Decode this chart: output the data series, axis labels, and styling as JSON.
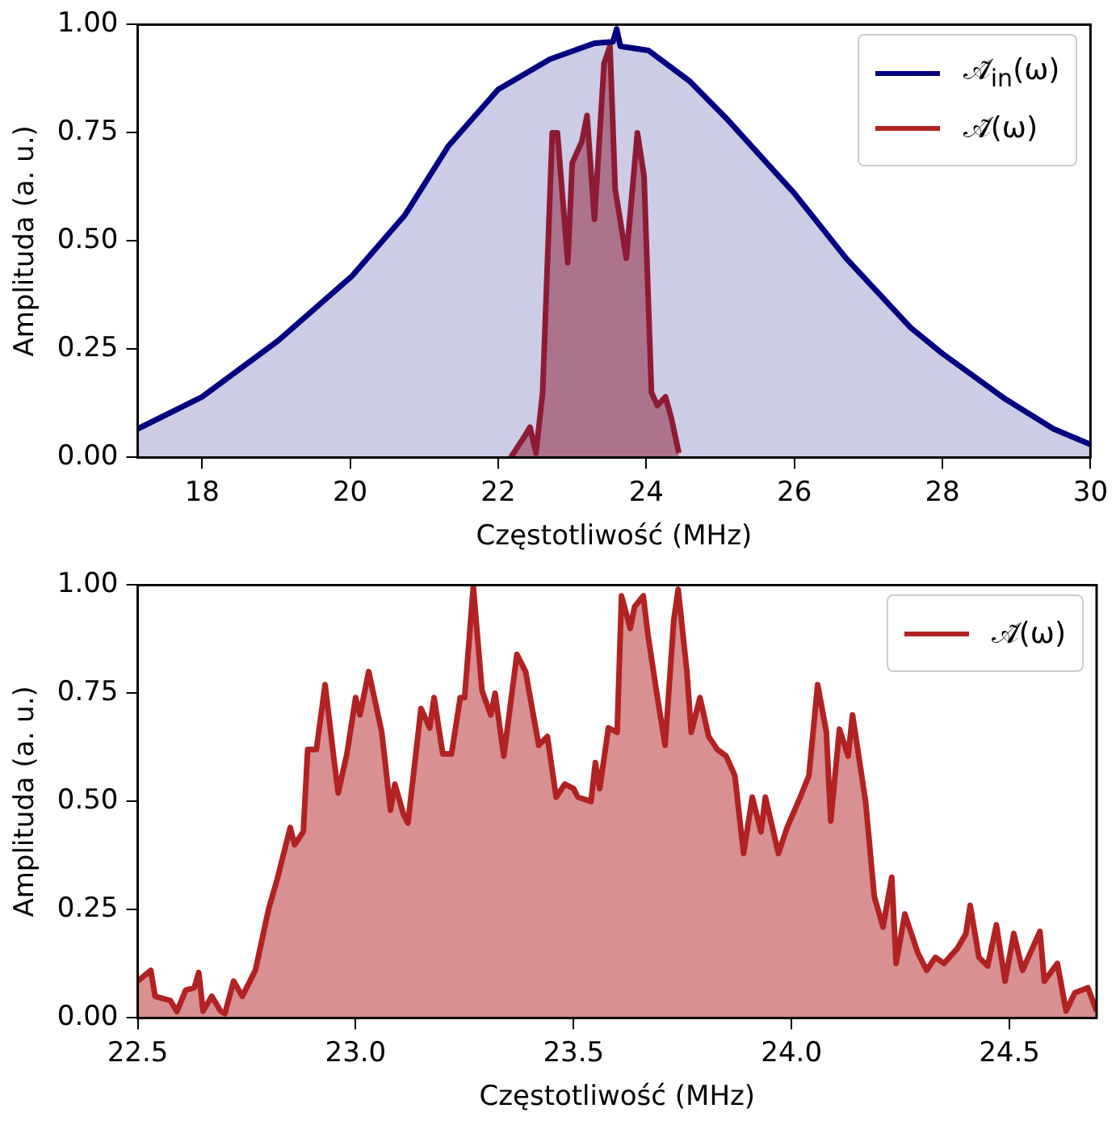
{
  "chart_data": [
    {
      "type": "area",
      "xlabel": "Częstotliwość (MHz)",
      "ylabel": "Amplituda (a. u.)",
      "xlim": [
        17.13,
        30
      ],
      "xticks": [
        18,
        20,
        22,
        24,
        26,
        28,
        30
      ],
      "ylim": [
        0,
        1.0
      ],
      "yticks": [
        {
          "value": 0,
          "label": "0.00"
        },
        {
          "value": 0.25,
          "label": "0.25"
        },
        {
          "value": 0.5,
          "label": "0.50"
        },
        {
          "value": 0.75,
          "label": "0.75"
        },
        {
          "value": 1,
          "label": "1.00"
        }
      ],
      "grid": false,
      "legend": "top right",
      "marker": "none",
      "line_style": "solid",
      "series": [
        {
          "name": "𝒜̃$_{in}$(ω)",
          "color": "#000080",
          "x": [
            17.13,
            18,
            19.03,
            20.03,
            20.74,
            21.33,
            22,
            22.7,
            23.3,
            23.55,
            23.6,
            23.65,
            24.03,
            24.58,
            25.1,
            26,
            26.7,
            27.57,
            28,
            28.85,
            29.5,
            30
          ],
          "values": [
            0.066,
            0.14,
            0.27,
            0.42,
            0.56,
            0.72,
            0.85,
            0.92,
            0.957,
            0.96,
            0.99,
            0.95,
            0.94,
            0.87,
            0.78,
            0.61,
            0.46,
            0.3,
            0.24,
            0.135,
            0.066,
            0.03
          ]
        },
        {
          "name": "𝒜̃(ω)",
          "color": "#b22222",
          "x": [
            22.17,
            22.36,
            22.43,
            22.51,
            22.6,
            22.73,
            22.8,
            22.94,
            23.0,
            23.13,
            23.2,
            23.3,
            23.43,
            23.51,
            23.58,
            23.73,
            23.88,
            23.97,
            24.07,
            24.15,
            24.26,
            24.34,
            24.44
          ],
          "values": [
            0,
            0.05,
            0.07,
            0.01,
            0.15,
            0.75,
            0.75,
            0.45,
            0.68,
            0.73,
            0.79,
            0.55,
            0.91,
            0.95,
            0.62,
            0.46,
            0.75,
            0.65,
            0.15,
            0.12,
            0.14,
            0.09,
            0.01
          ]
        }
      ]
    },
    {
      "type": "area",
      "xlabel": "Częstotliwość (MHz)",
      "ylabel": "Amplituda (a. u.)",
      "xlim": [
        22.5,
        24.7
      ],
      "xticks": [
        {
          "value": 22.5,
          "label": "22.5"
        },
        {
          "value": 23,
          "label": "23.0"
        },
        {
          "value": 23.5,
          "label": "23.5"
        },
        {
          "value": 24,
          "label": "24.0"
        },
        {
          "value": 24.5,
          "label": "24.5"
        }
      ],
      "ylim": [
        0,
        1.0
      ],
      "yticks": [
        {
          "value": 0,
          "label": "0.00"
        },
        {
          "value": 0.25,
          "label": "0.25"
        },
        {
          "value": 0.5,
          "label": "0.50"
        },
        {
          "value": 0.75,
          "label": "0.75"
        },
        {
          "value": 1,
          "label": "1.00"
        }
      ],
      "grid": false,
      "legend": "top right",
      "marker": "none",
      "line_style": "solid",
      "series": [
        {
          "name": "𝒜̃(ω)",
          "color": "#b22222",
          "x": [
            22.5,
            22.53,
            22.54,
            22.575,
            22.59,
            22.61,
            22.63,
            22.64,
            22.65,
            22.67,
            22.69,
            22.7,
            22.72,
            22.74,
            22.77,
            22.8,
            22.82,
            22.85,
            22.86,
            22.88,
            22.89,
            22.91,
            22.93,
            22.95,
            22.96,
            22.98,
            23.0,
            23.01,
            23.03,
            23.06,
            23.08,
            23.09,
            23.11,
            23.12,
            23.15,
            23.17,
            23.18,
            23.2,
            23.22,
            23.24,
            23.25,
            23.27,
            23.29,
            23.31,
            23.32,
            23.34,
            23.37,
            23.39,
            23.42,
            23.44,
            23.46,
            23.48,
            23.5,
            23.51,
            23.54,
            23.55,
            23.56,
            23.58,
            23.6,
            23.61,
            23.63,
            23.64,
            23.66,
            23.67,
            23.69,
            23.71,
            23.73,
            23.74,
            23.76,
            23.77,
            23.79,
            23.81,
            23.83,
            23.85,
            23.87,
            23.89,
            23.91,
            23.93,
            23.94,
            23.97,
            23.99,
            24.02,
            24.04,
            24.06,
            24.08,
            24.09,
            24.11,
            24.13,
            24.14,
            24.17,
            24.19,
            24.21,
            24.23,
            24.24,
            24.26,
            24.29,
            24.31,
            24.33,
            24.35,
            24.38,
            24.4,
            24.41,
            24.43,
            24.45,
            24.47,
            24.49,
            24.51,
            24.53,
            24.57,
            24.58,
            24.61,
            24.63,
            24.65,
            24.68,
            24.7
          ],
          "values": [
            0.085,
            0.11,
            0.05,
            0.04,
            0.015,
            0.064,
            0.07,
            0.105,
            0.016,
            0.05,
            0.016,
            0.01,
            0.085,
            0.05,
            0.11,
            0.25,
            0.32,
            0.44,
            0.4,
            0.43,
            0.62,
            0.62,
            0.77,
            0.6,
            0.52,
            0.61,
            0.74,
            0.7,
            0.8,
            0.66,
            0.48,
            0.54,
            0.47,
            0.45,
            0.715,
            0.67,
            0.74,
            0.61,
            0.61,
            0.74,
            0.74,
            0.996,
            0.756,
            0.7,
            0.75,
            0.605,
            0.84,
            0.8,
            0.63,
            0.65,
            0.51,
            0.54,
            0.53,
            0.51,
            0.5,
            0.59,
            0.53,
            0.67,
            0.66,
            0.975,
            0.9,
            0.95,
            0.975,
            0.89,
            0.756,
            0.63,
            0.92,
            0.99,
            0.8,
            0.66,
            0.74,
            0.65,
            0.62,
            0.605,
            0.56,
            0.38,
            0.51,
            0.43,
            0.51,
            0.38,
            0.44,
            0.51,
            0.56,
            0.77,
            0.66,
            0.455,
            0.667,
            0.605,
            0.7,
            0.5,
            0.28,
            0.21,
            0.325,
            0.126,
            0.24,
            0.15,
            0.11,
            0.14,
            0.126,
            0.16,
            0.195,
            0.26,
            0.14,
            0.12,
            0.215,
            0.085,
            0.195,
            0.11,
            0.2,
            0.085,
            0.126,
            0.016,
            0.058,
            0.07,
            0.016
          ]
        }
      ]
    }
  ]
}
